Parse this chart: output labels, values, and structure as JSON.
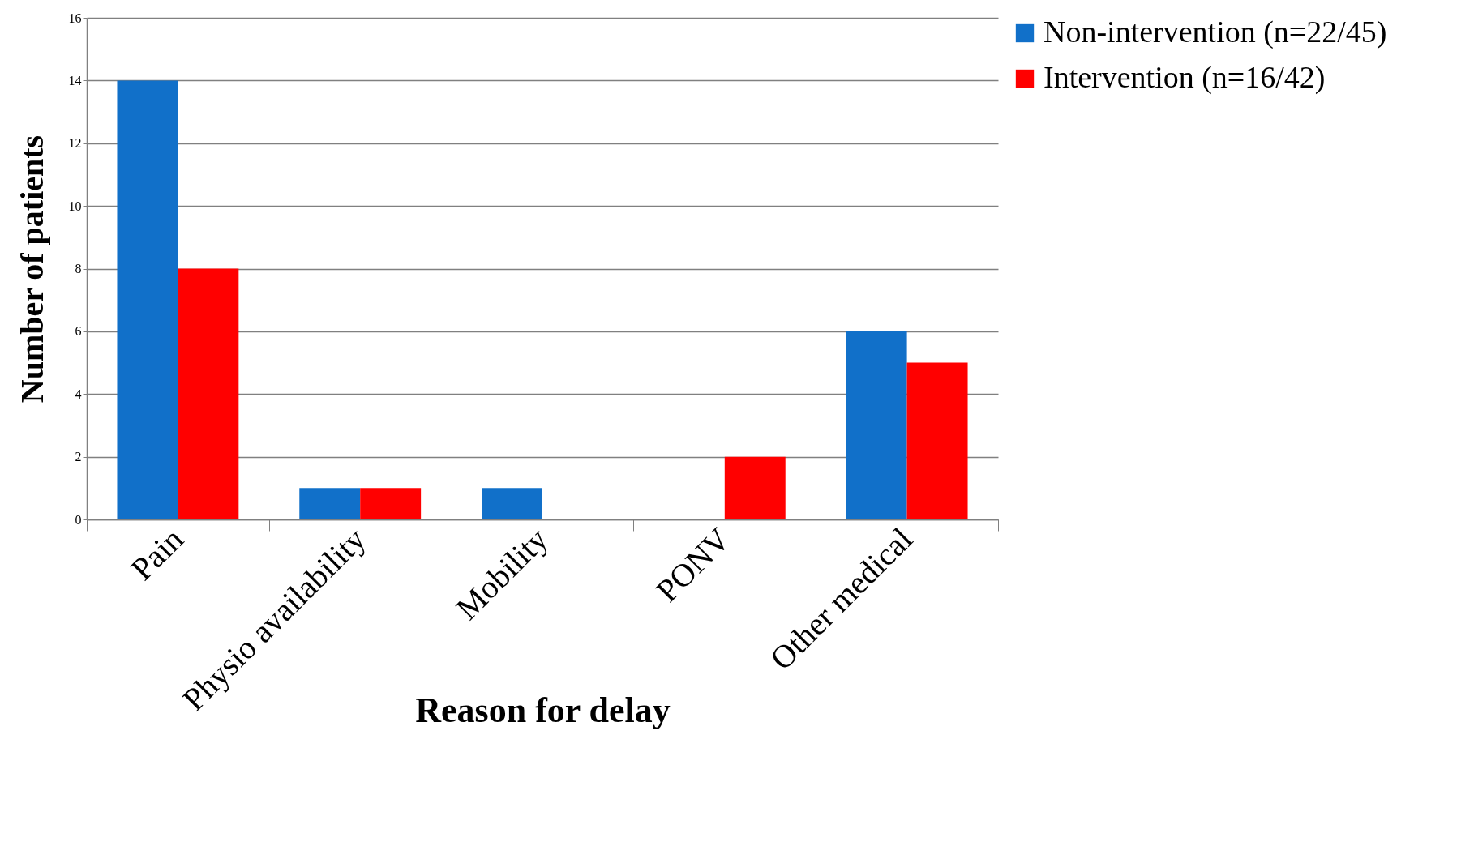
{
  "chart_data": {
    "type": "bar",
    "xlabel": "Reason for delay",
    "ylabel": "Number of patients",
    "categories": [
      "Pain",
      "Physio availability",
      "Mobility",
      "PONV",
      "Other medical"
    ],
    "series": [
      {
        "name": "Non-intervention (n=22/45)",
        "color": "#1170c9",
        "values": [
          14,
          1,
          1,
          0,
          6
        ]
      },
      {
        "name": "Intervention (n=16/42)",
        "color": "#ff0000",
        "values": [
          8,
          1,
          0,
          2,
          5
        ]
      }
    ],
    "ylim": [
      0,
      16
    ],
    "yticks": [
      0,
      2,
      4,
      6,
      8,
      10,
      12,
      14,
      16
    ],
    "grid": "y",
    "legend": "right"
  }
}
